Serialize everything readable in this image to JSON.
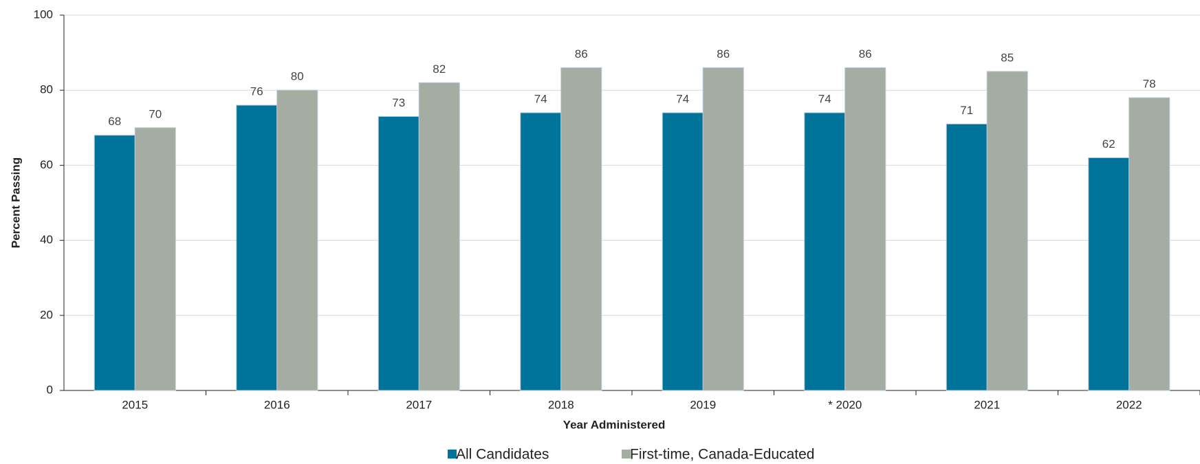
{
  "chart_data": {
    "type": "bar",
    "xlabel": "Year Administered",
    "ylabel": "Percent Passing",
    "categories": [
      "2015",
      "2016",
      "2017",
      "2018",
      "2019",
      "* 2020",
      "2021",
      "2022"
    ],
    "series": [
      {
        "name": "All Candidates",
        "color": "#00739a",
        "values": [
          68,
          76,
          73,
          74,
          74,
          74,
          71,
          62
        ]
      },
      {
        "name": "First-time, Canada-Educated",
        "color": "#a5aca1",
        "values": [
          70,
          80,
          82,
          86,
          86,
          86,
          85,
          78
        ]
      }
    ],
    "ylim": [
      0,
      100
    ],
    "yticks": [
      0,
      20,
      40,
      60,
      80,
      100
    ],
    "grid": true,
    "legend": "bottom"
  }
}
